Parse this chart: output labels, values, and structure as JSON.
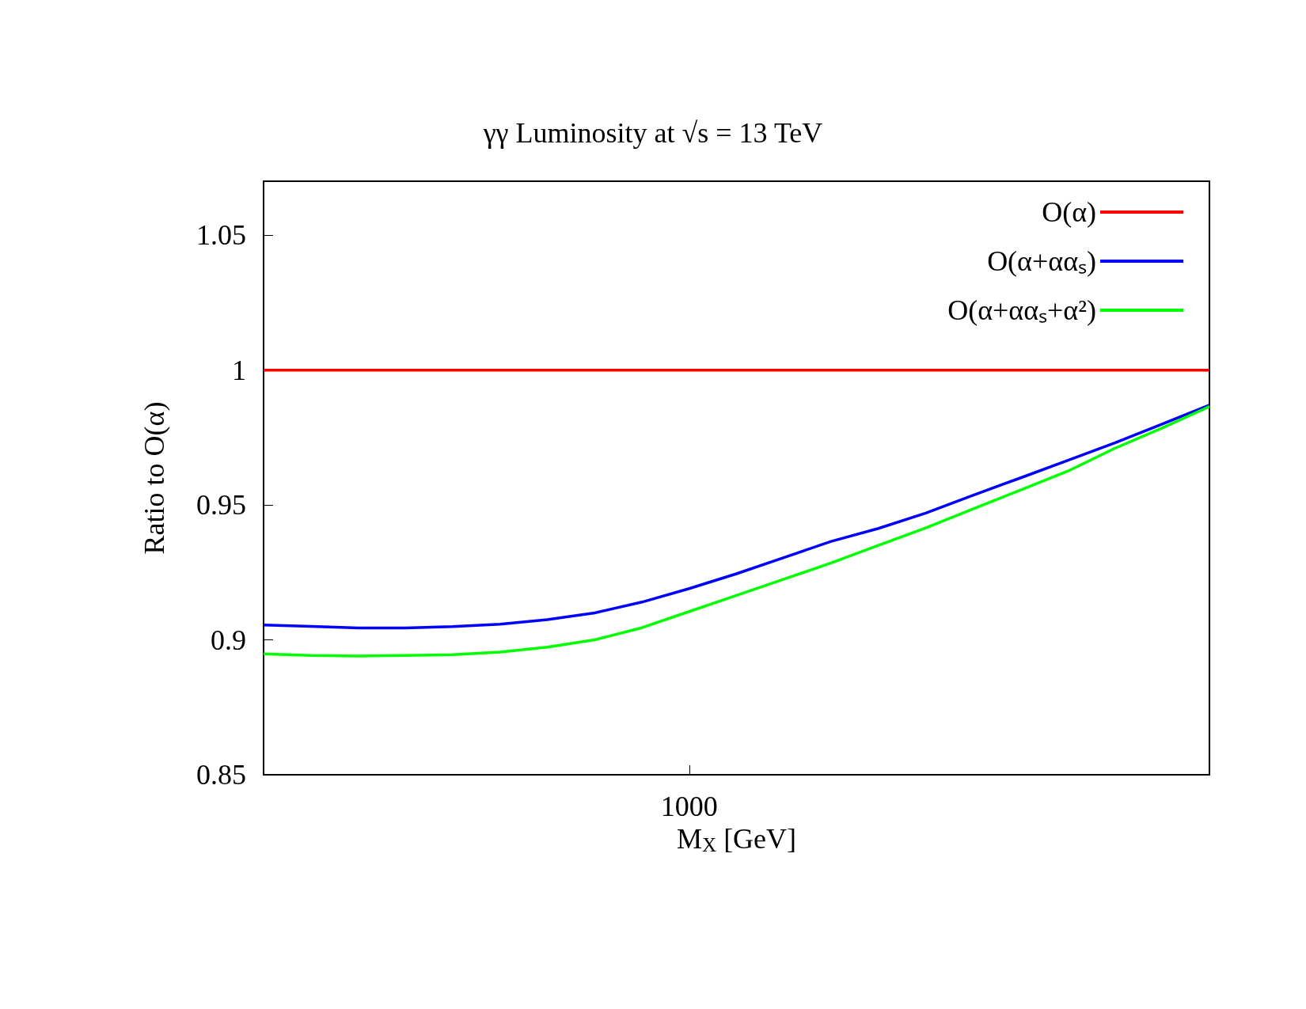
{
  "chart_data": {
    "type": "line",
    "title": "γγ Luminosity at √s = 13 TeV",
    "xlabel": "M$_{X}$ [GeV]",
    "ylabel": "Ratio to O(α)",
    "categories": [
      null,
      null,
      null,
      null,
      null,
      null,
      null,
      null,
      null,
      "1000",
      null,
      null,
      null,
      null,
      null,
      null,
      null,
      null,
      null,
      null,
      null
    ],
    "ylim": [
      0.85,
      1.07
    ],
    "yticks": [
      0.85,
      0.9,
      0.95,
      1,
      1.05
    ],
    "grid": false,
    "legend": "top right",
    "marker": "none",
    "line_style": "solid",
    "series": [
      {
        "name": "O(α)",
        "color": "#ff0000",
        "values": [
          1,
          1,
          1,
          1,
          1,
          1,
          1,
          1,
          1,
          1,
          1,
          1,
          1,
          1,
          1,
          1,
          1,
          1,
          1,
          1,
          1
        ]
      },
      {
        "name": "O(α+ααₛ)",
        "color": "#0000ff",
        "values": [
          0.9055,
          0.905,
          0.9044,
          0.9044,
          0.9049,
          0.9058,
          0.9075,
          0.91,
          0.914,
          0.919,
          0.9245,
          0.9305,
          0.9365,
          0.9413,
          0.947,
          0.9536,
          0.96,
          0.9665,
          0.973,
          0.98,
          0.987
        ]
      },
      {
        "name": "O(α+ααₛ+α²)",
        "color": "#00ff00",
        "values": [
          0.8948,
          0.8942,
          0.894,
          0.8942,
          0.8945,
          0.8955,
          0.8973,
          0.9,
          0.9045,
          0.9105,
          0.9165,
          0.9225,
          0.9285,
          0.935,
          0.9415,
          0.9485,
          0.9555,
          0.9625,
          0.971,
          0.9785,
          0.9865
        ]
      }
    ]
  }
}
